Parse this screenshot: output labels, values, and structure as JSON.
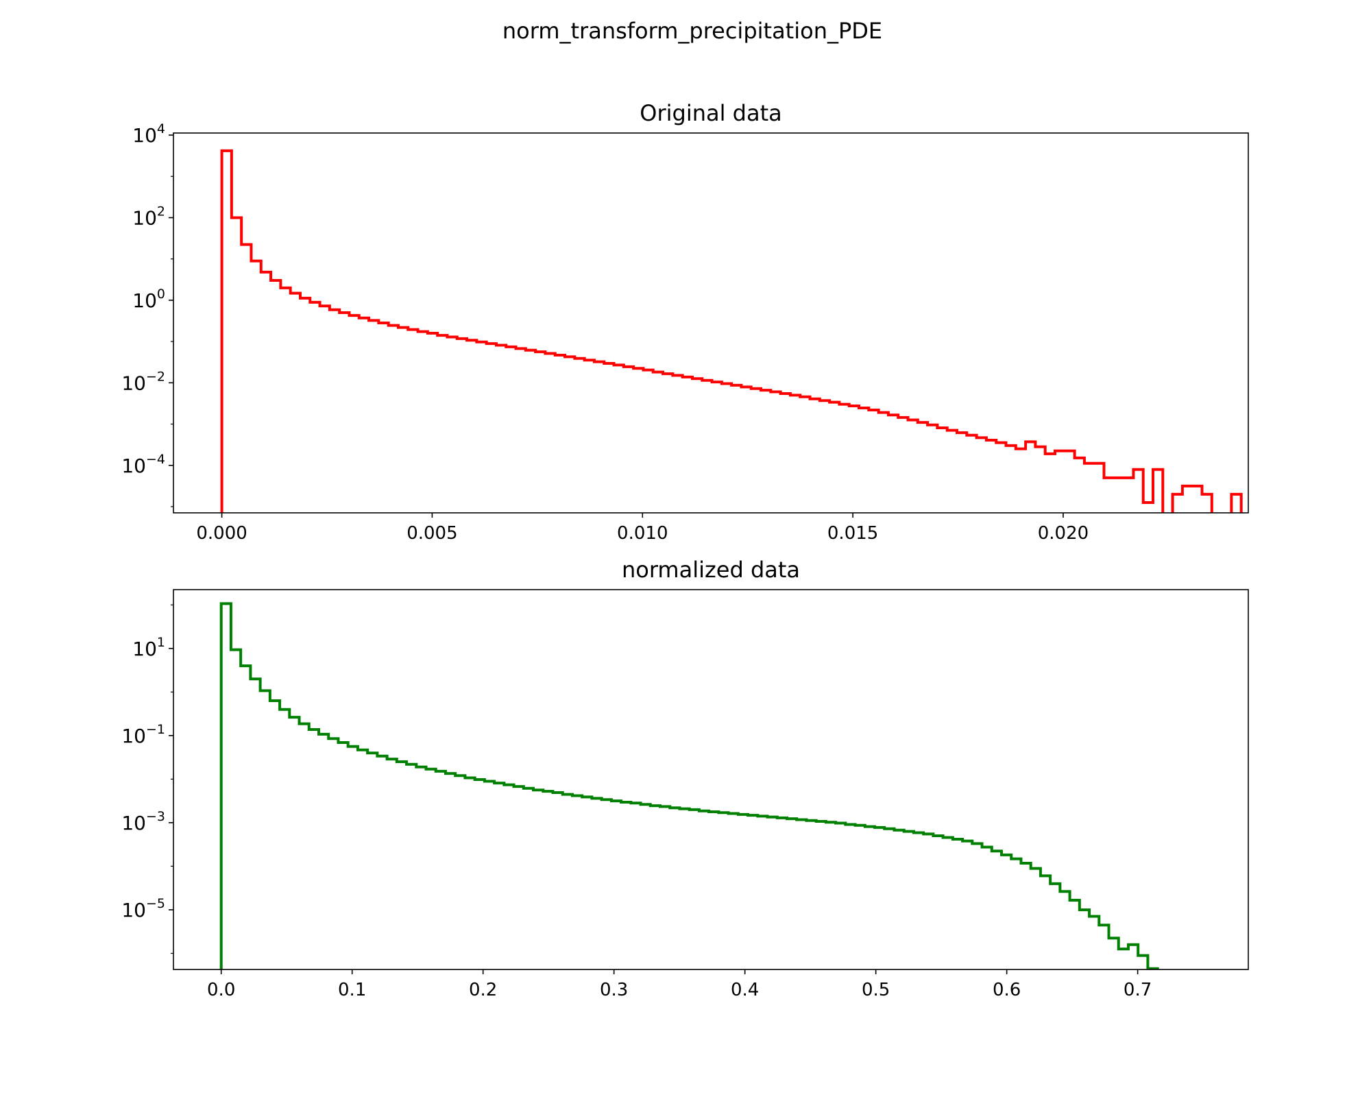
{
  "figure": {
    "suptitle": "norm_transform_precipitation_PDE"
  },
  "chart_data": [
    {
      "type": "line",
      "subtype": "step-histogram",
      "title": "Original data",
      "xlabel": "",
      "ylabel": "",
      "yscale": "log",
      "grid": false,
      "color": "#ff0000",
      "xlim": [
        -0.00115,
        0.0244
      ],
      "ylim_log10": [
        -5.15,
        4.05
      ],
      "xticks": [
        {
          "value": 0.0,
          "label": "0.000"
        },
        {
          "value": 0.005,
          "label": "0.005"
        },
        {
          "value": 0.01,
          "label": "0.010"
        },
        {
          "value": 0.015,
          "label": "0.015"
        },
        {
          "value": 0.02,
          "label": "0.020"
        }
      ],
      "yticks": [
        {
          "log10": 4,
          "base": "10",
          "exp": "4"
        },
        {
          "log10": 2,
          "base": "10",
          "exp": "2"
        },
        {
          "log10": 0,
          "base": "10",
          "exp": "0"
        },
        {
          "log10": -2,
          "base": "10",
          "exp": "−2"
        },
        {
          "log10": -4,
          "base": "10",
          "exp": "−4"
        }
      ],
      "bin_start": 0.0,
      "bin_width": 0.000233,
      "bin_log10_values": [
        3.62,
        2.0,
        1.35,
        0.95,
        0.68,
        0.48,
        0.3,
        0.17,
        0.05,
        -0.05,
        -0.14,
        -0.23,
        -0.3,
        -0.37,
        -0.43,
        -0.49,
        -0.55,
        -0.61,
        -0.66,
        -0.71,
        -0.76,
        -0.8,
        -0.85,
        -0.89,
        -0.93,
        -0.97,
        -1.01,
        -1.05,
        -1.09,
        -1.13,
        -1.17,
        -1.21,
        -1.25,
        -1.29,
        -1.33,
        -1.37,
        -1.41,
        -1.45,
        -1.49,
        -1.53,
        -1.57,
        -1.61,
        -1.65,
        -1.69,
        -1.74,
        -1.78,
        -1.82,
        -1.86,
        -1.9,
        -1.94,
        -1.98,
        -2.02,
        -2.06,
        -2.1,
        -2.14,
        -2.18,
        -2.22,
        -2.26,
        -2.3,
        -2.34,
        -2.39,
        -2.43,
        -2.47,
        -2.52,
        -2.56,
        -2.61,
        -2.66,
        -2.72,
        -2.78,
        -2.84,
        -2.9,
        -2.96,
        -3.02,
        -3.09,
        -3.15,
        -3.21,
        -3.27,
        -3.33,
        -3.39,
        -3.45,
        -3.52,
        -3.6,
        -3.43,
        -3.55,
        -3.72,
        -3.65,
        -3.65,
        -3.82,
        -3.95,
        -3.95,
        -4.3,
        -4.3,
        -4.3,
        -4.1,
        -4.9,
        -4.1,
        -6.0,
        -4.7,
        -4.5,
        -4.5,
        -4.7,
        -6.0,
        -6.0,
        -4.7,
        -6.0
      ]
    },
    {
      "type": "line",
      "subtype": "step-histogram",
      "title": "normalized data",
      "xlabel": "",
      "ylabel": "",
      "yscale": "log",
      "grid": false,
      "color": "#008000",
      "xlim": [
        -0.0365,
        0.7845
      ],
      "ylim_log10": [
        -6.37,
        2.35
      ],
      "xticks": [
        {
          "value": 0.0,
          "label": "0.0"
        },
        {
          "value": 0.1,
          "label": "0.1"
        },
        {
          "value": 0.2,
          "label": "0.2"
        },
        {
          "value": 0.3,
          "label": "0.3"
        },
        {
          "value": 0.4,
          "label": "0.4"
        },
        {
          "value": 0.5,
          "label": "0.5"
        },
        {
          "value": 0.6,
          "label": "0.6"
        },
        {
          "value": 0.7,
          "label": "0.7"
        }
      ],
      "yticks": [
        {
          "log10": 1,
          "base": "10",
          "exp": "1"
        },
        {
          "log10": -1,
          "base": "10",
          "exp": "−1"
        },
        {
          "log10": -3,
          "base": "10",
          "exp": "−3"
        },
        {
          "log10": -5,
          "base": "10",
          "exp": "−5"
        }
      ],
      "bin_start": 0.0,
      "bin_width": 0.00745,
      "bin_log10_values": [
        2.03,
        0.97,
        0.6,
        0.3,
        0.03,
        -0.2,
        -0.4,
        -0.58,
        -0.73,
        -0.86,
        -0.97,
        -1.07,
        -1.16,
        -1.25,
        -1.33,
        -1.4,
        -1.47,
        -1.54,
        -1.6,
        -1.66,
        -1.72,
        -1.77,
        -1.82,
        -1.87,
        -1.92,
        -1.97,
        -2.01,
        -2.05,
        -2.09,
        -2.13,
        -2.17,
        -2.21,
        -2.25,
        -2.28,
        -2.31,
        -2.35,
        -2.38,
        -2.41,
        -2.44,
        -2.47,
        -2.5,
        -2.53,
        -2.55,
        -2.58,
        -2.61,
        -2.63,
        -2.66,
        -2.68,
        -2.7,
        -2.73,
        -2.75,
        -2.77,
        -2.79,
        -2.81,
        -2.83,
        -2.85,
        -2.87,
        -2.89,
        -2.91,
        -2.93,
        -2.95,
        -2.97,
        -2.99,
        -3.01,
        -3.04,
        -3.06,
        -3.09,
        -3.11,
        -3.14,
        -3.17,
        -3.2,
        -3.23,
        -3.26,
        -3.3,
        -3.34,
        -3.38,
        -3.42,
        -3.48,
        -3.56,
        -3.65,
        -3.74,
        -3.83,
        -3.93,
        -4.05,
        -4.22,
        -4.4,
        -4.58,
        -4.78,
        -5.0,
        -5.15,
        -5.35,
        -5.65,
        -5.9,
        -5.8,
        -6.05,
        -6.35
      ]
    }
  ]
}
